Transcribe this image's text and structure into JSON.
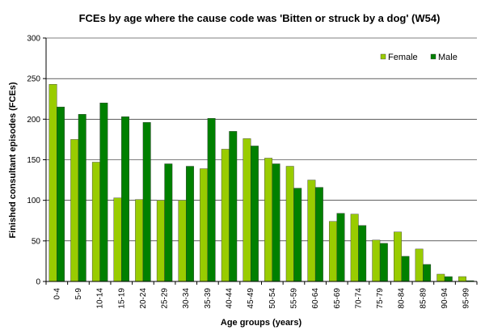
{
  "chart_data": {
    "type": "bar",
    "title": "FCEs by age where the cause code was 'Bitten or struck by a dog' (W54)",
    "xlabel": "Age groups (years)",
    "ylabel": "Finished consultant episodes (FCEs)",
    "ylim": [
      0,
      300
    ],
    "yticks": [
      0,
      50,
      100,
      150,
      200,
      250,
      300
    ],
    "grid": true,
    "legend_position": "top-right",
    "categories": [
      "0-4",
      "5-9",
      "10-14",
      "15-19",
      "20-24",
      "25-29",
      "30-34",
      "35-39",
      "40-44",
      "45-49",
      "50-54",
      "55-59",
      "60-64",
      "65-69",
      "70-74",
      "75-79",
      "80-84",
      "85-89",
      "90-94",
      "95-99"
    ],
    "series": [
      {
        "name": "Female",
        "color": "#99CC00",
        "values": [
          243,
          175,
          147,
          103,
          101,
          100,
          100,
          139,
          163,
          176,
          152,
          142,
          125,
          74,
          83,
          51,
          61,
          40,
          9,
          6
        ]
      },
      {
        "name": "Male",
        "color": "#008000",
        "values": [
          215,
          206,
          220,
          203,
          196,
          145,
          142,
          201,
          185,
          167,
          145,
          115,
          116,
          84,
          69,
          47,
          31,
          21,
          6,
          1
        ]
      }
    ]
  }
}
